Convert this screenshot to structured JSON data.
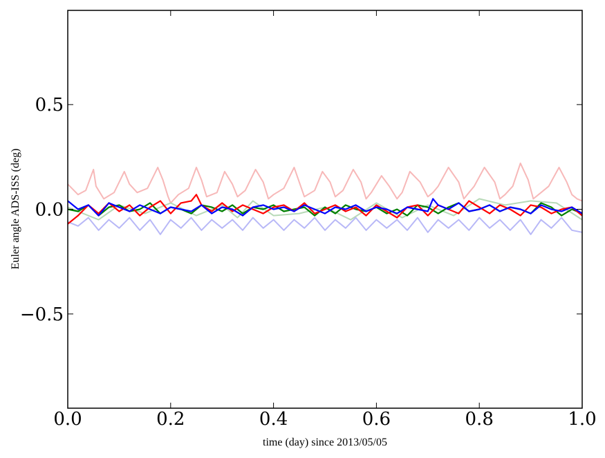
{
  "chart_data": {
    "type": "line",
    "title": "",
    "xlabel": "time (day) since 2013/05/05",
    "ylabel": "Euler angle ADS-ISS (deg)",
    "xlim": [
      0.0,
      1.0
    ],
    "ylim": [
      -0.95,
      0.95
    ],
    "xticks": [
      0.0,
      0.2,
      0.4,
      0.6,
      0.8,
      1.0
    ],
    "xtick_labels": [
      "0.0",
      "0.2",
      "0.4",
      "0.6",
      "0.8",
      "1.0"
    ],
    "yticks": [
      0.5,
      0.0,
      -0.5
    ],
    "ytick_labels": [
      "0.5",
      "0.0",
      "−0.5"
    ],
    "grid": false,
    "legend": "none",
    "series": [
      {
        "color": "#f7b8b8",
        "x": [
          0.0,
          0.02,
          0.035,
          0.05,
          0.055,
          0.07,
          0.09,
          0.11,
          0.12,
          0.135,
          0.155,
          0.175,
          0.185,
          0.195,
          0.2,
          0.215,
          0.235,
          0.25,
          0.26,
          0.27,
          0.29,
          0.305,
          0.32,
          0.33,
          0.345,
          0.365,
          0.38,
          0.39,
          0.4,
          0.42,
          0.44,
          0.45,
          0.46,
          0.48,
          0.495,
          0.51,
          0.52,
          0.535,
          0.555,
          0.57,
          0.58,
          0.59,
          0.61,
          0.625,
          0.64,
          0.65,
          0.665,
          0.685,
          0.7,
          0.71,
          0.72,
          0.74,
          0.76,
          0.77,
          0.78,
          0.79,
          0.81,
          0.83,
          0.84,
          0.85,
          0.865,
          0.88,
          0.895,
          0.905,
          0.92,
          0.935,
          0.955,
          0.97,
          0.98,
          0.99,
          1.0
        ],
        "y": [
          0.12,
          0.07,
          0.09,
          0.19,
          0.11,
          0.05,
          0.08,
          0.18,
          0.12,
          0.08,
          0.1,
          0.2,
          0.14,
          0.06,
          0.03,
          0.07,
          0.1,
          0.2,
          0.14,
          0.06,
          0.08,
          0.18,
          0.12,
          0.06,
          0.09,
          0.19,
          0.13,
          0.05,
          0.07,
          0.1,
          0.2,
          0.13,
          0.06,
          0.09,
          0.18,
          0.13,
          0.06,
          0.09,
          0.19,
          0.13,
          0.05,
          0.08,
          0.16,
          0.11,
          0.05,
          0.08,
          0.18,
          0.13,
          0.06,
          0.08,
          0.11,
          0.2,
          0.13,
          0.05,
          0.08,
          0.11,
          0.2,
          0.13,
          0.05,
          0.07,
          0.11,
          0.22,
          0.14,
          0.05,
          0.08,
          0.11,
          0.2,
          0.13,
          0.07,
          0.05,
          0.04
        ]
      },
      {
        "color": "#b7d9b7",
        "x": [
          0.0,
          0.03,
          0.06,
          0.1,
          0.15,
          0.2,
          0.25,
          0.3,
          0.33,
          0.36,
          0.4,
          0.45,
          0.5,
          0.55,
          0.6,
          0.65,
          0.7,
          0.75,
          0.8,
          0.85,
          0.9,
          0.95,
          1.0
        ],
        "y": [
          0.01,
          -0.02,
          -0.05,
          0.02,
          -0.02,
          0.03,
          -0.03,
          0.02,
          -0.04,
          0.04,
          -0.03,
          -0.02,
          0.01,
          -0.05,
          0.03,
          -0.04,
          0.02,
          -0.03,
          0.05,
          0.02,
          0.04,
          0.03,
          -0.05
        ]
      },
      {
        "color": "#b8b8f7",
        "x": [
          0.0,
          0.02,
          0.04,
          0.06,
          0.08,
          0.1,
          0.12,
          0.14,
          0.16,
          0.18,
          0.2,
          0.22,
          0.24,
          0.26,
          0.28,
          0.3,
          0.32,
          0.34,
          0.36,
          0.38,
          0.4,
          0.42,
          0.44,
          0.46,
          0.48,
          0.5,
          0.52,
          0.54,
          0.56,
          0.58,
          0.6,
          0.62,
          0.64,
          0.66,
          0.68,
          0.7,
          0.72,
          0.74,
          0.76,
          0.78,
          0.8,
          0.82,
          0.84,
          0.86,
          0.88,
          0.9,
          0.92,
          0.94,
          0.96,
          0.98,
          1.0
        ],
        "y": [
          -0.06,
          -0.08,
          -0.04,
          -0.1,
          -0.05,
          -0.09,
          -0.04,
          -0.1,
          -0.05,
          -0.12,
          -0.05,
          -0.09,
          -0.04,
          -0.1,
          -0.05,
          -0.09,
          -0.05,
          -0.1,
          -0.04,
          -0.09,
          -0.05,
          -0.1,
          -0.05,
          -0.09,
          -0.04,
          -0.1,
          -0.05,
          -0.09,
          -0.04,
          -0.1,
          -0.05,
          -0.09,
          -0.05,
          -0.1,
          -0.04,
          -0.11,
          -0.05,
          -0.09,
          -0.05,
          -0.1,
          -0.04,
          -0.09,
          -0.05,
          -0.1,
          -0.05,
          -0.12,
          -0.05,
          -0.09,
          -0.04,
          -0.1,
          -0.11
        ]
      },
      {
        "color": "#008000",
        "x": [
          0.0,
          0.02,
          0.04,
          0.06,
          0.08,
          0.1,
          0.12,
          0.14,
          0.16,
          0.18,
          0.2,
          0.22,
          0.24,
          0.26,
          0.28,
          0.3,
          0.32,
          0.34,
          0.36,
          0.38,
          0.4,
          0.42,
          0.44,
          0.46,
          0.48,
          0.5,
          0.52,
          0.54,
          0.56,
          0.58,
          0.6,
          0.62,
          0.64,
          0.66,
          0.68,
          0.7,
          0.72,
          0.74,
          0.76,
          0.78,
          0.8,
          0.82,
          0.84,
          0.86,
          0.88,
          0.9,
          0.92,
          0.94,
          0.96,
          0.98,
          1.0
        ],
        "y": [
          0.0,
          -0.01,
          0.02,
          -0.03,
          0.01,
          0.02,
          -0.01,
          0.0,
          0.03,
          -0.02,
          0.01,
          0.0,
          -0.02,
          0.02,
          0.01,
          -0.01,
          0.02,
          -0.02,
          0.01,
          0.0,
          0.02,
          -0.01,
          0.0,
          0.01,
          -0.03,
          0.01,
          -0.02,
          0.02,
          0.0,
          -0.01,
          0.01,
          -0.02,
          0.0,
          -0.03,
          0.02,
          0.01,
          -0.02,
          0.01,
          0.03,
          -0.01,
          0.0,
          0.02,
          -0.01,
          0.01,
          0.0,
          -0.02,
          0.03,
          0.01,
          -0.03,
          0.0,
          -0.02
        ]
      },
      {
        "color": "#ff0000",
        "x": [
          0.0,
          0.02,
          0.04,
          0.06,
          0.08,
          0.1,
          0.12,
          0.14,
          0.16,
          0.18,
          0.2,
          0.22,
          0.24,
          0.25,
          0.26,
          0.28,
          0.3,
          0.32,
          0.34,
          0.36,
          0.38,
          0.4,
          0.42,
          0.44,
          0.46,
          0.48,
          0.5,
          0.52,
          0.54,
          0.56,
          0.58,
          0.6,
          0.62,
          0.64,
          0.66,
          0.68,
          0.7,
          0.72,
          0.74,
          0.76,
          0.78,
          0.8,
          0.82,
          0.84,
          0.86,
          0.88,
          0.9,
          0.92,
          0.94,
          0.96,
          0.98,
          1.0
        ],
        "y": [
          -0.07,
          -0.03,
          0.02,
          -0.02,
          0.03,
          -0.01,
          0.02,
          -0.03,
          0.01,
          0.04,
          -0.02,
          0.03,
          0.04,
          0.07,
          0.02,
          -0.01,
          0.03,
          -0.01,
          0.02,
          0.0,
          -0.02,
          0.01,
          0.02,
          -0.01,
          0.03,
          -0.02,
          0.0,
          0.02,
          -0.01,
          0.01,
          -0.03,
          0.02,
          -0.01,
          -0.04,
          0.01,
          0.02,
          -0.03,
          0.02,
          0.0,
          -0.02,
          0.04,
          0.01,
          -0.02,
          0.02,
          0.0,
          -0.03,
          0.02,
          0.01,
          -0.02,
          0.0,
          0.01,
          -0.03
        ]
      },
      {
        "color": "#0000ff",
        "x": [
          0.0,
          0.02,
          0.04,
          0.06,
          0.08,
          0.1,
          0.12,
          0.14,
          0.16,
          0.18,
          0.2,
          0.22,
          0.24,
          0.26,
          0.28,
          0.3,
          0.32,
          0.34,
          0.36,
          0.38,
          0.4,
          0.42,
          0.44,
          0.46,
          0.48,
          0.5,
          0.52,
          0.54,
          0.56,
          0.58,
          0.6,
          0.62,
          0.64,
          0.66,
          0.68,
          0.7,
          0.71,
          0.72,
          0.74,
          0.76,
          0.78,
          0.8,
          0.82,
          0.84,
          0.86,
          0.88,
          0.9,
          0.92,
          0.94,
          0.96,
          0.98,
          1.0
        ],
        "y": [
          0.04,
          0.0,
          0.02,
          -0.03,
          0.03,
          0.01,
          -0.01,
          0.02,
          0.0,
          -0.02,
          0.01,
          0.0,
          -0.01,
          0.02,
          -0.02,
          0.01,
          0.0,
          -0.03,
          0.01,
          0.02,
          0.0,
          0.01,
          -0.01,
          0.02,
          0.0,
          -0.02,
          0.01,
          0.0,
          0.02,
          -0.01,
          0.01,
          0.0,
          -0.02,
          0.01,
          0.0,
          -0.01,
          0.05,
          0.02,
          0.0,
          0.03,
          -0.01,
          0.0,
          0.02,
          -0.01,
          0.01,
          0.0,
          -0.02,
          0.02,
          0.0,
          -0.01,
          0.01,
          -0.02
        ]
      }
    ]
  }
}
